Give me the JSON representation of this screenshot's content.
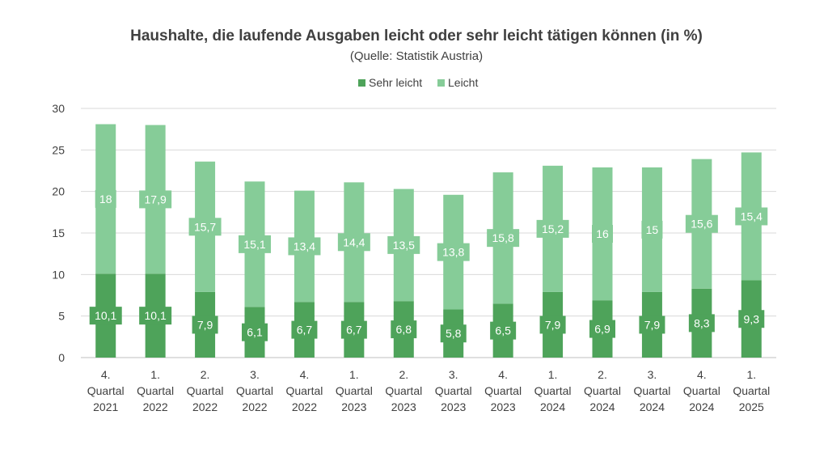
{
  "chart_data": {
    "type": "bar",
    "stacked": true,
    "title": "Haushalte, die laufende Ausgaben leicht oder sehr leicht tätigen können (in %)",
    "subtitle": "(Quelle: Statistik Austria)",
    "categories": [
      [
        "4.",
        "Quartal",
        "2021"
      ],
      [
        "1.",
        "Quartal",
        "2022"
      ],
      [
        "2.",
        "Quartal",
        "2022"
      ],
      [
        "3.",
        "Quartal",
        "2022"
      ],
      [
        "4.",
        "Quartal",
        "2022"
      ],
      [
        "1.",
        "Quartal",
        "2023"
      ],
      [
        "2.",
        "Quartal",
        "2023"
      ],
      [
        "3.",
        "Quartal",
        "2023"
      ],
      [
        "4.",
        "Quartal",
        "2023"
      ],
      [
        "1.",
        "Quartal",
        "2024"
      ],
      [
        "2.",
        "Quartal",
        "2024"
      ],
      [
        "3.",
        "Quartal",
        "2024"
      ],
      [
        "4.",
        "Quartal",
        "2024"
      ],
      [
        "1.",
        "Quartal",
        "2025"
      ]
    ],
    "series": [
      {
        "name": "Sehr leicht",
        "color": "#4ea35a",
        "values": [
          10.1,
          10.1,
          7.9,
          6.1,
          6.7,
          6.7,
          6.8,
          5.8,
          6.5,
          7.9,
          6.9,
          7.9,
          8.3,
          9.3
        ],
        "labels": [
          "10,1",
          "10,1",
          "7,9",
          "6,1",
          "6,7",
          "6,7",
          "6,8",
          "5,8",
          "6,5",
          "7,9",
          "6,9",
          "7,9",
          "8,3",
          "9,3"
        ]
      },
      {
        "name": "Leicht",
        "color": "#86cc98",
        "values": [
          18,
          17.9,
          15.7,
          15.1,
          13.4,
          14.4,
          13.5,
          13.8,
          15.8,
          15.2,
          16,
          15,
          15.6,
          15.4
        ],
        "labels": [
          "18",
          "17,9",
          "15,7",
          "15,1",
          "13,4",
          "14,4",
          "13,5",
          "13,8",
          "15,8",
          "15,2",
          "16",
          "15",
          "15,6",
          "15,4"
        ]
      }
    ],
    "ylim": [
      0,
      30
    ],
    "yticks": [
      0,
      5,
      10,
      15,
      20,
      25,
      30
    ],
    "grid": true,
    "legend": "top-center"
  }
}
